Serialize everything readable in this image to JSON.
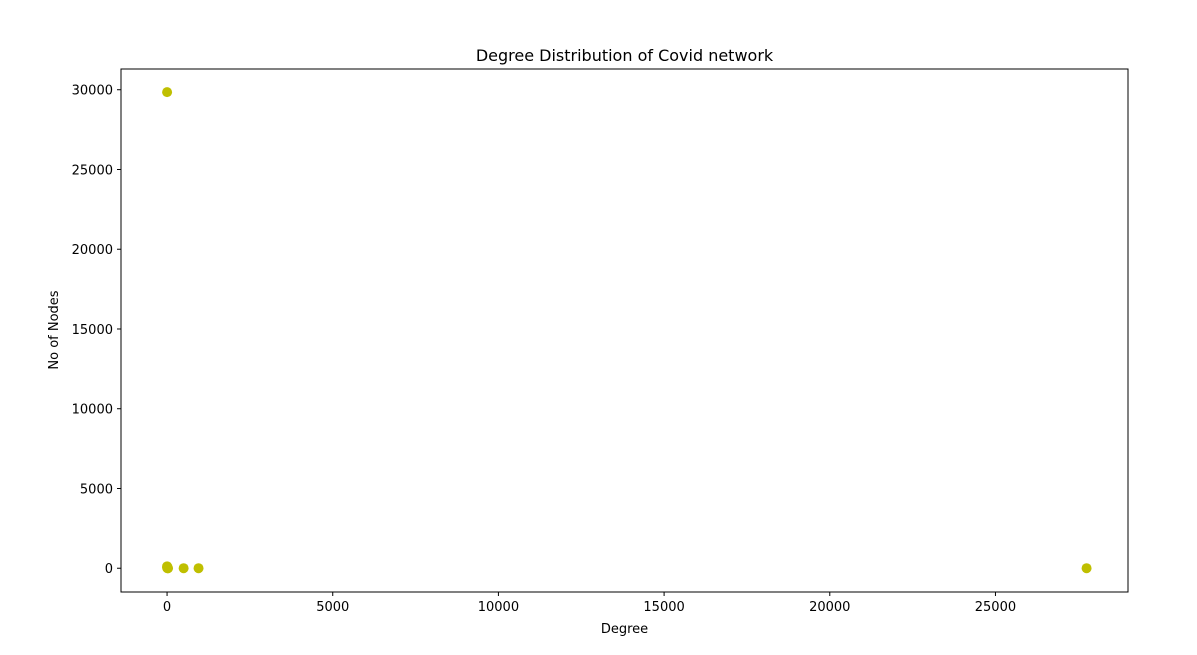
{
  "chart_data": {
    "type": "scatter",
    "title": "Degree Distribution of Covid network",
    "xlabel": "Degree",
    "ylabel": "No of Nodes",
    "xlim": [
      -1390,
      29000
    ],
    "ylim": [
      -1490,
      31300
    ],
    "xticks": [
      0,
      5000,
      10000,
      15000,
      20000,
      25000
    ],
    "yticks": [
      0,
      5000,
      10000,
      15000,
      20000,
      25000,
      30000
    ],
    "grid": false,
    "legend": "none",
    "marker_color": "#bfbf00",
    "series": [
      {
        "x": [
          1,
          2,
          3,
          5,
          8,
          10,
          15,
          20,
          30,
          500,
          950,
          27750
        ],
        "y": [
          29850,
          120,
          60,
          30,
          15,
          10,
          5,
          3,
          2,
          1,
          1,
          1
        ]
      }
    ]
  }
}
